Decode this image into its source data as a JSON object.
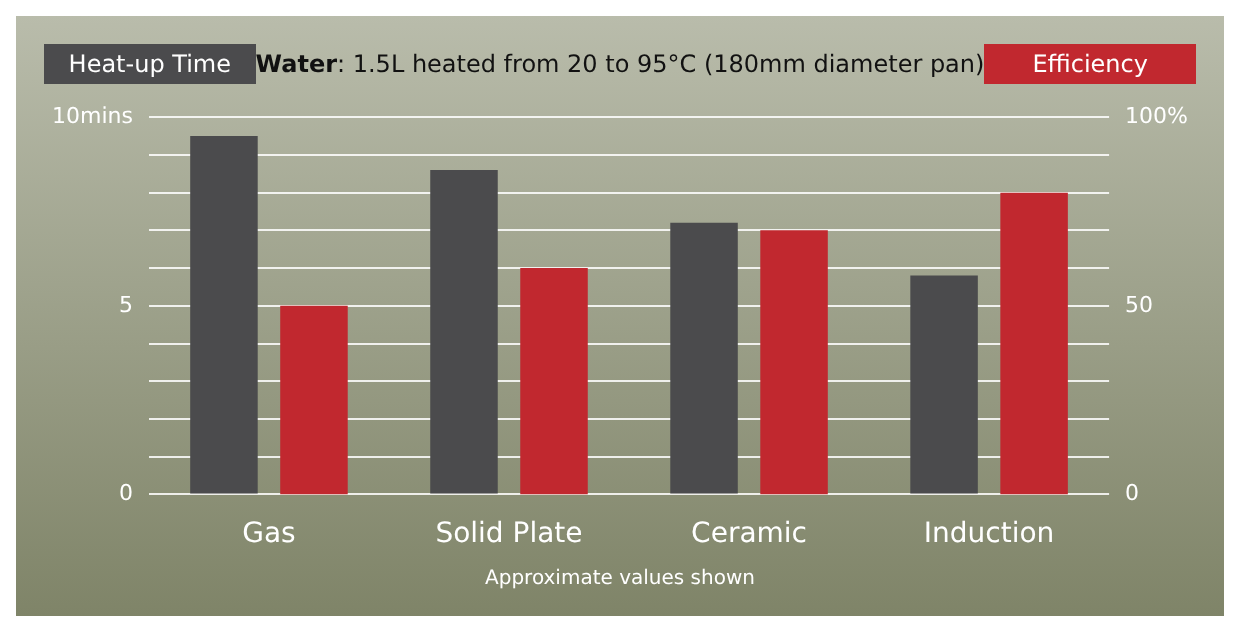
{
  "chart_data": {
    "type": "bar",
    "title": "Water: 1.5L heated from 20 to 95°C (180mm diameter pan)",
    "categories": [
      "Gas",
      "Solid Plate",
      "Ceramic",
      "Induction"
    ],
    "series": [
      {
        "name": "Heat-up Time",
        "color": "#4b4b4d",
        "values": [
          9.5,
          8.6,
          7.2,
          5.8
        ]
      },
      {
        "name": "Efficiency",
        "color": "#c1282f",
        "axis": "y2",
        "values": [
          50,
          60,
          70,
          80
        ]
      }
    ],
    "ylim": [
      0,
      10
    ],
    "yticks": [
      0,
      {
        "value": 1,
        "label": null
      },
      {
        "value": 2,
        "label": null
      },
      {
        "value": 3,
        "label": null
      },
      {
        "value": 4,
        "label": null
      },
      5,
      {
        "value": 6,
        "label": null
      },
      {
        "value": 7,
        "label": null
      },
      {
        "value": 8,
        "label": null
      },
      {
        "value": 9,
        "label": null
      },
      {
        "value": 10,
        "label": "10mins"
      }
    ],
    "y2lim": [
      0,
      100
    ],
    "y2ticks": [
      0,
      {
        "value": 10,
        "label": null
      },
      {
        "value": 20,
        "label": null
      },
      {
        "value": 30,
        "label": null
      },
      {
        "value": 40,
        "label": null
      },
      50,
      {
        "value": 60,
        "label": null
      },
      {
        "value": 70,
        "label": null
      },
      {
        "value": 80,
        "label": null
      },
      {
        "value": 90,
        "label": null
      },
      {
        "value": 100,
        "label": "100%"
      }
    ],
    "grid": "y",
    "legend": "top",
    "annotations": [
      "Approximate values shown"
    ]
  }
}
